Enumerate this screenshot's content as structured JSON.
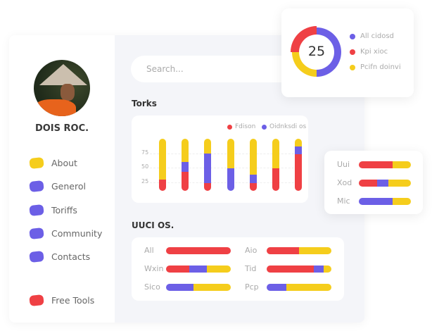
{
  "colors": {
    "red": "#ef4044",
    "purple": "#6c5fe6",
    "yellow": "#f5cd1c"
  },
  "profile": {
    "name": "DOIS ROC."
  },
  "sidebar": {
    "items": [
      {
        "label": "About",
        "color": "#f5cd1c"
      },
      {
        "label": "Generol",
        "color": "#6c5fe6"
      },
      {
        "label": "Toriffs",
        "color": "#6c5fe6"
      },
      {
        "label": "Community",
        "color": "#6c5fe6"
      },
      {
        "label": "Contacts",
        "color": "#6c5fe6"
      },
      {
        "label": "Free Tools",
        "color": "#ef4044"
      }
    ]
  },
  "search": {
    "placeholder": "Search..."
  },
  "donut": {
    "value": "25",
    "segments": [
      {
        "label": "All cidosd",
        "color": "#6c5fe6",
        "percent": 50
      },
      {
        "label": "Kpi xioc",
        "color": "#ef4044",
        "percent": 25
      },
      {
        "label": "Pcifn doinvi",
        "color": "#f5cd1c",
        "percent": 25
      }
    ]
  },
  "torks": {
    "title": "Torks"
  },
  "chart_data": {
    "type": "bar",
    "stacked": true,
    "yticks": [
      25,
      50,
      75
    ],
    "ylim": [
      10,
      100
    ],
    "grid": true,
    "legend_position": "top-right",
    "legend": [
      {
        "label": "Fdison",
        "color": "#ef4044"
      },
      {
        "label": "Oidnksdi os",
        "color": "#6c5fe6"
      }
    ],
    "series": [
      {
        "color": "#ef4044",
        "values": [
          20,
          33,
          13,
          0,
          13,
          39,
          63
        ]
      },
      {
        "color": "#6c5fe6",
        "values": [
          0,
          17,
          52,
          39,
          15,
          0,
          14
        ]
      },
      {
        "color": "#f5cd1c",
        "values": [
          70,
          40,
          25,
          51,
          62,
          51,
          13
        ]
      }
    ]
  },
  "side_bars": [
    {
      "label": "Uui",
      "parts": [
        65,
        0,
        35
      ]
    },
    {
      "label": "Xod",
      "parts": [
        35,
        22,
        43
      ]
    },
    {
      "label": "Mic",
      "parts": [
        0,
        65,
        35
      ]
    }
  ],
  "uuci": {
    "title": "UUCI OS.",
    "rows": [
      {
        "label": "All",
        "parts": [
          100,
          0,
          0
        ]
      },
      {
        "label": "Aio",
        "parts": [
          50,
          0,
          50
        ]
      },
      {
        "label": "Wxin",
        "parts": [
          36,
          27,
          37
        ]
      },
      {
        "label": "Tid",
        "parts": [
          73,
          15,
          12
        ]
      },
      {
        "label": "Sico",
        "parts": [
          0,
          42,
          58
        ]
      },
      {
        "label": "Pcp",
        "parts": [
          0,
          30,
          70
        ]
      }
    ]
  }
}
